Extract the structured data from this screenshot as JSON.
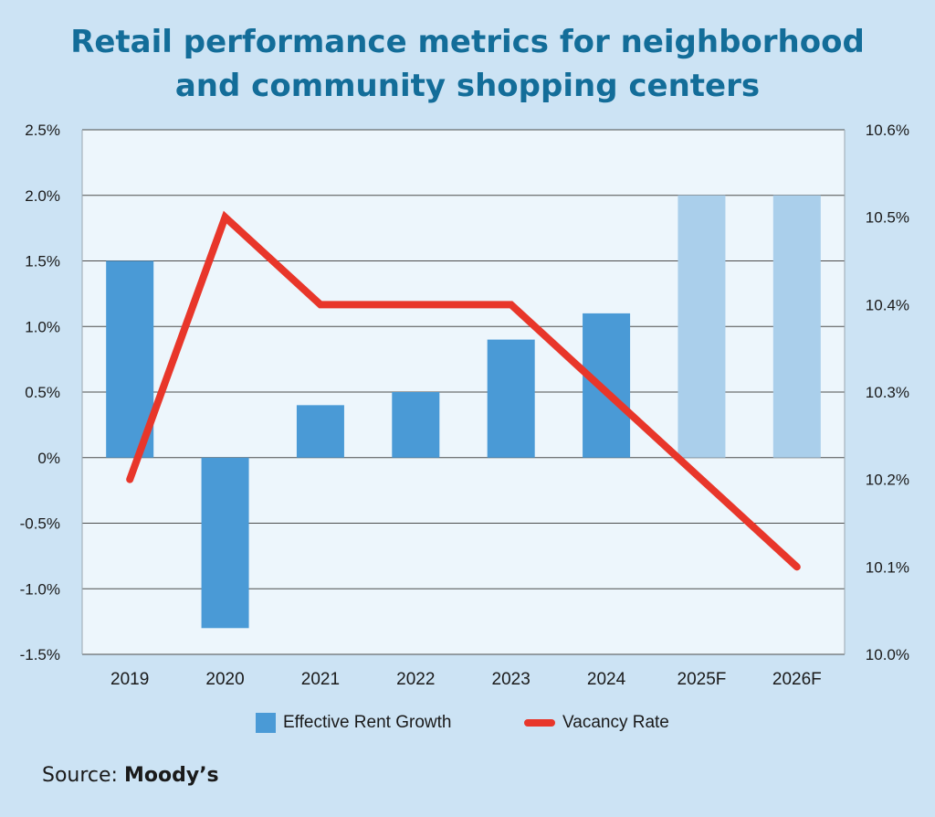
{
  "title": {
    "line1": "Retail performance metrics for neighborhood",
    "line2": "and community shopping centers"
  },
  "source": {
    "label": "Source:",
    "name": "Moody’s"
  },
  "legend": {
    "bars": "Effective Rent Growth",
    "line": "Vacancy Rate"
  },
  "colors": {
    "bar": "#4a9ad6",
    "bar_forecast": "#aacfeb",
    "line": "#e8362a",
    "title": "#136d99"
  },
  "chart_data": {
    "type": "bar",
    "categories": [
      "2019",
      "2020",
      "2021",
      "2022",
      "2023",
      "2024",
      "2025F",
      "2026F"
    ],
    "series": [
      {
        "name": "Effective Rent Growth",
        "type": "bar",
        "axis": "left",
        "values": [
          1.5,
          -1.3,
          0.4,
          0.5,
          0.9,
          1.1,
          2.0,
          2.0
        ],
        "forecast": [
          false,
          false,
          false,
          false,
          false,
          false,
          true,
          true
        ]
      },
      {
        "name": "Vacancy Rate",
        "type": "line",
        "axis": "right",
        "values": [
          10.2,
          10.5,
          10.4,
          10.4,
          10.4,
          10.3,
          10.2,
          10.1
        ]
      }
    ],
    "left_axis": {
      "ylim": [
        -1.5,
        2.5
      ],
      "ticks": [
        2.5,
        2.0,
        1.5,
        1.0,
        0.5,
        0,
        -0.5,
        -1.0,
        -1.5
      ],
      "tick_labels": [
        "2.5%",
        "2.0%",
        "1.5%",
        "1.0%",
        "0.5%",
        "0%",
        "-0.5%",
        "-1.0%",
        "-1.5%"
      ]
    },
    "right_axis": {
      "ylim": [
        10.0,
        10.6
      ],
      "ticks": [
        10.6,
        10.5,
        10.4,
        10.3,
        10.2,
        10.1,
        10.0
      ],
      "tick_labels": [
        "10.6%",
        "10.5%",
        "10.4%",
        "10.3%",
        "10.2%",
        "10.1%",
        "10.0%"
      ]
    },
    "grid": true,
    "legend_position": "bottom"
  }
}
